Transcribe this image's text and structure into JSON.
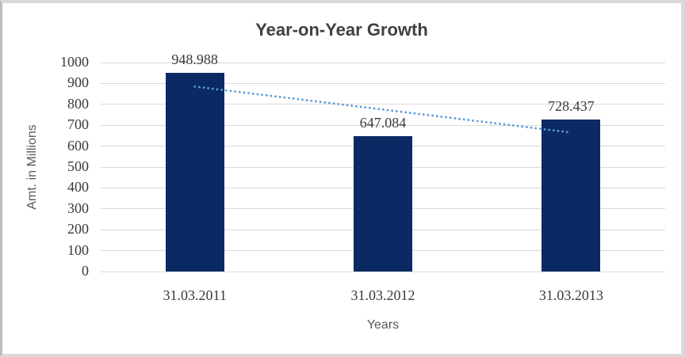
{
  "chart_data": {
    "type": "bar",
    "title": "Year-on-Year Growth",
    "categories": [
      "31.03.2011",
      "31.03.2012",
      "31.03.2013"
    ],
    "values": [
      948.988,
      647.084,
      728.437
    ],
    "value_labels": [
      "948.988",
      "647.084",
      "728.437"
    ],
    "xlabel": "Years",
    "ylabel": "Amt. in Millions",
    "ylim": [
      0,
      1000
    ],
    "yticks": [
      0,
      100,
      200,
      300,
      400,
      500,
      600,
      700,
      800,
      900,
      1000
    ],
    "grid": "horizontal",
    "legend": "none",
    "bar_color": "#0b2a64",
    "trendline": {
      "type": "linear",
      "style": "dotted",
      "color": "#5b9bd5",
      "start_value": 885,
      "end_value": 665
    },
    "colors": {
      "title": "#404040",
      "tick_labels": "#3a3a3a",
      "axis_titles": "#595959",
      "gridline": "#d9d9d9",
      "background": "#ffffff",
      "border": "#d9d9d9"
    }
  }
}
